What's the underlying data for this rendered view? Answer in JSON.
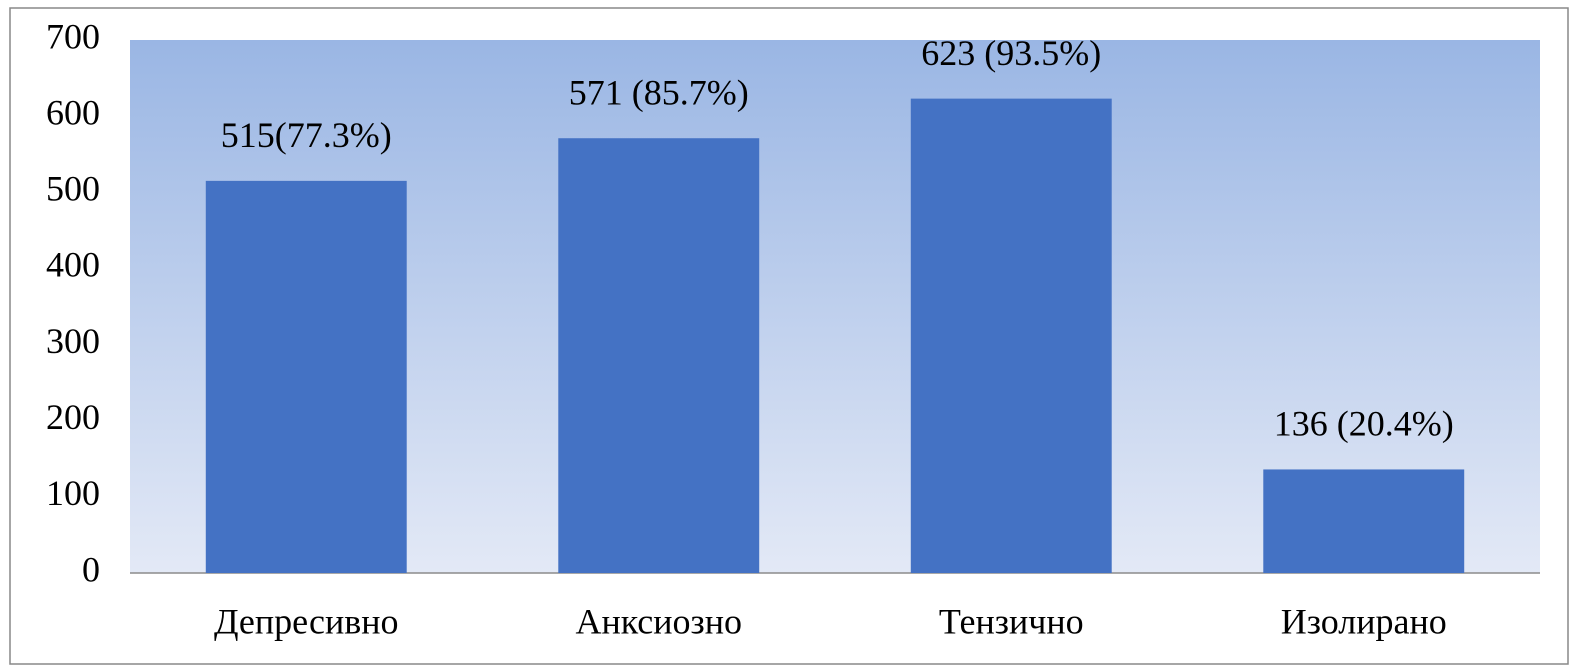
{
  "chart_data": {
    "type": "bar",
    "categories": [
      "Депресивно",
      "Анксиозно",
      "Тензично",
      "Изолирано"
    ],
    "values": [
      515,
      571,
      623,
      136
    ],
    "value_labels": [
      "515(77.3%)",
      "571 (85.7%)",
      "623 (93.5%)",
      "136 (20.4%)"
    ],
    "color": "#4472c4",
    "ylim": [
      0,
      700
    ],
    "yticks": [
      0,
      100,
      200,
      300,
      400,
      500,
      600,
      700
    ]
  }
}
